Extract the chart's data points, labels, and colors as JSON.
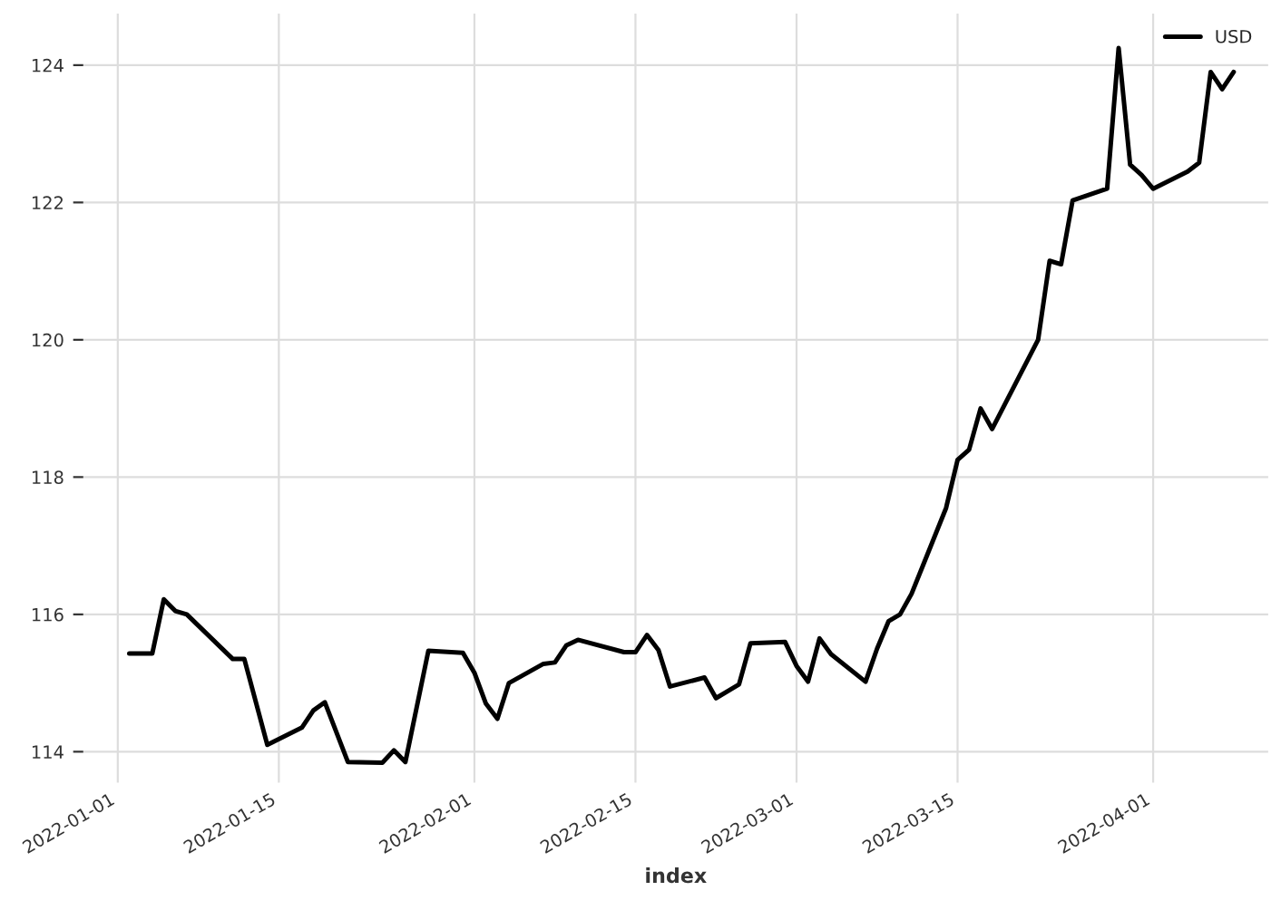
{
  "chart_data": {
    "type": "line",
    "xlabel": "index",
    "x": [
      "2022-01-02",
      "2022-01-04",
      "2022-01-05",
      "2022-01-06",
      "2022-01-07",
      "2022-01-11",
      "2022-01-12",
      "2022-01-14",
      "2022-01-17",
      "2022-01-18",
      "2022-01-19",
      "2022-01-21",
      "2022-01-24",
      "2022-01-25",
      "2022-01-26",
      "2022-01-28",
      "2022-01-31",
      "2022-02-01",
      "2022-02-02",
      "2022-02-03",
      "2022-02-04",
      "2022-02-07",
      "2022-02-08",
      "2022-02-09",
      "2022-02-10",
      "2022-02-14",
      "2022-02-15",
      "2022-02-16",
      "2022-02-17",
      "2022-02-18",
      "2022-02-21",
      "2022-02-22",
      "2022-02-24",
      "2022-02-25",
      "2022-02-28",
      "2022-03-01",
      "2022-03-02",
      "2022-03-03",
      "2022-03-04",
      "2022-03-07",
      "2022-03-08",
      "2022-03-09",
      "2022-03-10",
      "2022-03-11",
      "2022-03-14",
      "2022-03-15",
      "2022-03-16",
      "2022-03-17",
      "2022-03-18",
      "2022-03-22",
      "2022-03-23",
      "2022-03-24",
      "2022-03-25",
      "2022-03-28",
      "2022-03-29",
      "2022-03-30",
      "2022-03-31",
      "2022-04-01",
      "2022-04-04",
      "2022-04-05",
      "2022-04-06",
      "2022-04-07",
      "2022-04-08"
    ],
    "series": [
      {
        "name": "USD",
        "color": "#000000",
        "values": [
          115.43,
          115.43,
          116.22,
          116.05,
          116.0,
          115.35,
          115.35,
          114.1,
          114.35,
          114.6,
          114.72,
          113.85,
          113.84,
          114.02,
          113.85,
          115.47,
          115.44,
          115.15,
          114.7,
          114.48,
          115.0,
          115.28,
          115.3,
          115.55,
          115.63,
          115.45,
          115.45,
          115.7,
          115.48,
          114.95,
          115.08,
          114.78,
          114.98,
          115.58,
          115.6,
          115.25,
          115.02,
          115.65,
          115.42,
          115.02,
          115.5,
          115.9,
          116.0,
          116.3,
          117.55,
          118.25,
          118.4,
          119.0,
          118.7,
          120.0,
          121.15,
          121.1,
          122.03,
          122.2,
          124.25,
          122.55,
          122.4,
          122.2,
          122.45,
          122.58,
          123.9,
          123.65,
          123.9
        ]
      }
    ],
    "xlim": [
      "2021-12-29",
      "2022-04-11"
    ],
    "xticks": [
      "2022-01-01",
      "2022-01-15",
      "2022-02-01",
      "2022-02-15",
      "2022-03-01",
      "2022-03-15",
      "2022-04-01"
    ],
    "ylim": [
      113.55,
      124.75
    ],
    "yticks": [
      114,
      116,
      118,
      120,
      122,
      124
    ],
    "grid": true,
    "legend": "top right",
    "line_style": "solid",
    "marker": "none"
  }
}
